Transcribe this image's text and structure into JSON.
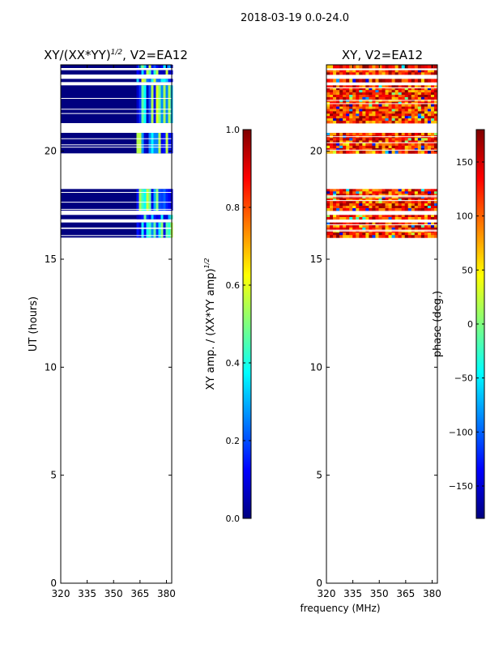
{
  "figure_title": "2018-03-19 0.0-24.0",
  "colors": {
    "jet": [
      "#00007f",
      "#0000ff",
      "#007fff",
      "#00ffff",
      "#7fff7f",
      "#ffff00",
      "#ff7f00",
      "#ff0000",
      "#7f0000"
    ],
    "flagged": "#ffffff"
  },
  "chart_data": [
    {
      "type": "heatmap",
      "title_text": "XY/(XX*YY)",
      "title_exponent": "1/2",
      "title_suffix": ", V2=EA12",
      "xlabel": "",
      "ylabel": "UT (hours)",
      "xlim": [
        320,
        383
      ],
      "ylim": [
        0,
        24
      ],
      "xticks": [
        320,
        335,
        350,
        365,
        380
      ],
      "yticks": [
        0,
        5,
        10,
        15,
        20
      ],
      "colorbar": {
        "label_text": "XY amp. / (XX*YY amp)",
        "label_exponent": "1/2",
        "range": [
          0.0,
          1.0
        ],
        "ticks": [
          "0.0",
          "0.2",
          "0.4",
          "0.6",
          "0.8",
          "1.0"
        ]
      },
      "data_bands_hours": [
        [
          16.0,
          16.7
        ],
        [
          16.85,
          17.05
        ],
        [
          17.25,
          18.25
        ],
        [
          19.9,
          20.85
        ],
        [
          21.3,
          23.05
        ],
        [
          23.2,
          23.35
        ],
        [
          23.55,
          23.75
        ],
        [
          23.85,
          24.0
        ]
      ],
      "typical_value": 0.0,
      "bright_columns_mhz": [
        363,
        383
      ],
      "bright_value": 0.5
    },
    {
      "type": "heatmap",
      "title_text": "XY, V2=EA12",
      "xlabel": "frequency (MHz)",
      "ylabel": "",
      "xlim": [
        320,
        383
      ],
      "ylim": [
        0,
        24
      ],
      "xticks": [
        320,
        335,
        350,
        365,
        380
      ],
      "yticks": [
        0,
        5,
        10,
        15,
        20
      ],
      "colorbar": {
        "label_text": "phase (deg.)",
        "range": [
          -180,
          180
        ],
        "ticks": [
          "150",
          "100",
          "50",
          "0",
          "−50",
          "−100",
          "−150"
        ]
      },
      "data_bands_hours": [
        [
          16.0,
          16.7
        ],
        [
          16.85,
          17.05
        ],
        [
          17.25,
          18.25
        ],
        [
          19.9,
          20.85
        ],
        [
          21.3,
          23.05
        ],
        [
          23.2,
          23.35
        ],
        [
          23.55,
          23.75
        ],
        [
          23.85,
          24.0
        ]
      ],
      "typical_value": 120
    }
  ]
}
